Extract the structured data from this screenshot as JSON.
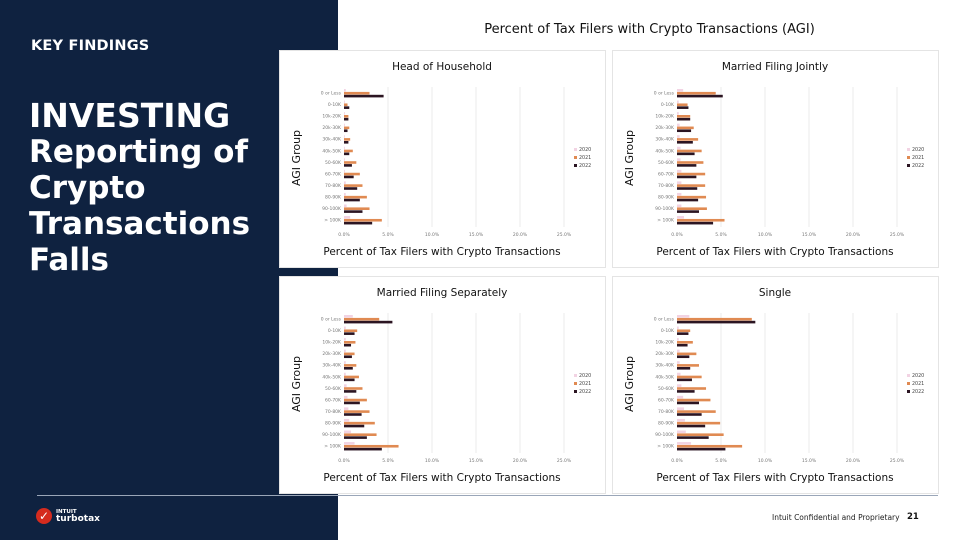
{
  "sidebar": {
    "kicker": "KEY FINDINGS",
    "headline_bold": "INVESTING",
    "headline_rest": [
      "Reporting of",
      "Crypto",
      "Transactions",
      "Falls"
    ]
  },
  "logo": {
    "line1": "INTUIT",
    "line2": "turbotax"
  },
  "footer": {
    "text": "Intuit Confidential and Proprietary",
    "page": "21"
  },
  "colors": {
    "2020": "#f2d3e3",
    "2021": "#e08a52",
    "2022": "#2b1522"
  },
  "chart_data": {
    "title": "Percent of Tax Filers with Crypto Transactions (AGI)",
    "type": "bar",
    "categories": [
      "0 or Less",
      "0-10K",
      "10k-20K",
      "20k-30K",
      "30k-40K",
      "40k-50K",
      "50-60K",
      "60-70K",
      "70-80K",
      "80-90K",
      "90-100K",
      "> 100K"
    ],
    "xticks": [
      "0.0%",
      "5.0%",
      "10.0%",
      "15.0%",
      "20.0%",
      "25.0%"
    ],
    "xlim": [
      0,
      25
    ],
    "legend": [
      "2020",
      "2021",
      "2022"
    ],
    "legend_position": "right",
    "charts": [
      {
        "title": "Head of Household",
        "xlabel": "Percent of Tax Filers with Crypto Transactions",
        "ylabel": "AGI Group",
        "series": [
          {
            "name": "2020",
            "values": [
              0.2,
              0.1,
              0.1,
              0.1,
              0.1,
              0.1,
              0.1,
              0.1,
              0.2,
              0.2,
              0.3,
              0.7
            ]
          },
          {
            "name": "2021",
            "values": [
              2.9,
              0.4,
              0.5,
              0.6,
              0.7,
              1.0,
              1.4,
              1.8,
              2.1,
              2.6,
              2.9,
              4.3
            ]
          },
          {
            "name": "2022",
            "values": [
              4.5,
              0.6,
              0.5,
              0.4,
              0.5,
              0.6,
              0.9,
              1.1,
              1.5,
              1.8,
              2.1,
              3.2
            ]
          }
        ]
      },
      {
        "title": "Married Filing Jointly",
        "xlabel": "Percent of Tax Filers with Crypto Transactions",
        "ylabel": "AGI Group",
        "series": [
          {
            "name": "2020",
            "values": [
              0.7,
              0.2,
              0.2,
              0.3,
              0.3,
              0.4,
              0.4,
              0.5,
              0.5,
              0.5,
              0.5,
              0.8
            ]
          },
          {
            "name": "2021",
            "values": [
              4.4,
              1.2,
              1.5,
              1.9,
              2.4,
              2.8,
              3.0,
              3.2,
              3.2,
              3.3,
              3.4,
              5.4
            ]
          },
          {
            "name": "2022",
            "values": [
              5.2,
              1.3,
              1.5,
              1.6,
              1.8,
              2.0,
              2.2,
              2.2,
              2.3,
              2.4,
              2.5,
              4.1
            ]
          }
        ]
      },
      {
        "title": "Married Filing Separately",
        "xlabel": "Percent of Tax Filers with Crypto Transactions",
        "ylabel": "AGI Group",
        "series": [
          {
            "name": "2020",
            "values": [
              1.0,
              0.2,
              0.2,
              0.2,
              0.2,
              0.2,
              0.3,
              0.4,
              0.5,
              0.6,
              0.8,
              1.2
            ]
          },
          {
            "name": "2021",
            "values": [
              4.0,
              1.5,
              1.3,
              1.2,
              1.4,
              1.7,
              2.1,
              2.6,
              2.9,
              3.5,
              3.7,
              6.2
            ]
          },
          {
            "name": "2022",
            "values": [
              5.5,
              1.2,
              0.8,
              0.9,
              1.0,
              1.2,
              1.4,
              1.8,
              2.0,
              2.3,
              2.6,
              4.3
            ]
          }
        ]
      },
      {
        "title": "Single",
        "xlabel": "Percent of Tax Filers with Crypto Transactions",
        "ylabel": "AGI Group",
        "series": [
          {
            "name": "2020",
            "values": [
              1.4,
              0.2,
              0.2,
              0.3,
              0.3,
              0.4,
              0.5,
              0.7,
              0.8,
              0.9,
              1.0,
              1.6
            ]
          },
          {
            "name": "2021",
            "values": [
              8.5,
              1.5,
              1.8,
              2.2,
              2.5,
              2.8,
              3.3,
              3.8,
              4.4,
              4.9,
              5.3,
              7.4
            ]
          },
          {
            "name": "2022",
            "values": [
              8.9,
              1.3,
              1.2,
              1.4,
              1.5,
              1.7,
              2.0,
              2.5,
              2.8,
              3.2,
              3.6,
              5.5
            ]
          }
        ]
      }
    ]
  }
}
